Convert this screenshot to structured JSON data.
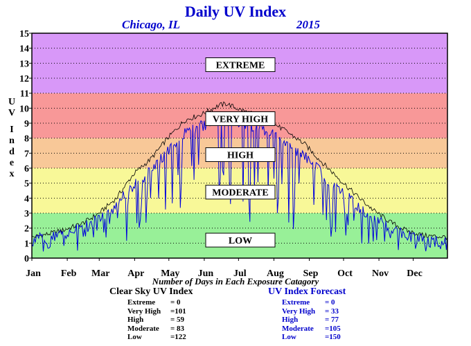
{
  "title": "Daily UV Index",
  "location": "Chicago, IL",
  "year": "2015",
  "ylabel": "UV Index",
  "footer_caption": "Number of Days in Each Exposure Catagory",
  "clear_sky": {
    "heading": "Clear Sky UV Index",
    "rows": [
      {
        "label": "Extreme",
        "value": "= 0"
      },
      {
        "label": "Very High",
        "value": "=101"
      },
      {
        "label": "High",
        "value": "= 59"
      },
      {
        "label": "Moderate",
        "value": "= 83"
      },
      {
        "label": "Low",
        "value": "=122"
      }
    ]
  },
  "forecast": {
    "heading": "UV Index Forecast",
    "rows": [
      {
        "label": "Extreme",
        "value": "= 0"
      },
      {
        "label": "Very High",
        "value": "= 33"
      },
      {
        "label": "High",
        "value": "= 77"
      },
      {
        "label": "Moderate",
        "value": "=105"
      },
      {
        "label": "Low",
        "value": "=150"
      }
    ]
  },
  "colors": {
    "title": "#0000cc",
    "forecast_line": "#0000dd",
    "clear_sky_line": "#000000",
    "band_low": "#98f098",
    "band_moderate": "#f8f898",
    "band_high": "#f8c898",
    "band_very_high": "#f89898",
    "band_extreme": "#d898f8"
  },
  "chart_data": {
    "type": "line",
    "x_tick_labels": [
      "Jan",
      "Feb",
      "Mar",
      "Apr",
      "May",
      "Jun",
      "Jul",
      "Aug",
      "Sep",
      "Oct",
      "Nov",
      "Dec"
    ],
    "y_ticks": [
      0,
      1,
      2,
      3,
      4,
      5,
      6,
      7,
      8,
      9,
      10,
      11,
      12,
      13,
      14,
      15
    ],
    "ylim": [
      0,
      15
    ],
    "xlim": [
      1,
      365
    ],
    "grid": true,
    "bands": [
      {
        "label": "LOW",
        "from": 0,
        "to": 3,
        "label_y": 1.2
      },
      {
        "label": "MODERATE",
        "from": 3,
        "to": 6,
        "label_y": 4.4
      },
      {
        "label": "HIGH",
        "from": 6,
        "to": 8,
        "label_y": 6.9
      },
      {
        "label": "VERY HIGH",
        "from": 8,
        "to": 11,
        "label_y": 9.3
      },
      {
        "label": "EXTREME",
        "from": 11,
        "to": 15,
        "label_y": 12.9
      }
    ],
    "series": [
      {
        "name": "Clear Sky UV Index",
        "x": [
          1,
          15,
          30,
          45,
          60,
          75,
          90,
          105,
          120,
          135,
          150,
          165,
          172,
          180,
          195,
          210,
          225,
          240,
          255,
          270,
          285,
          300,
          315,
          330,
          345,
          365
        ],
        "values": [
          1.4,
          1.6,
          1.9,
          2.3,
          3.0,
          4.0,
          5.6,
          6.6,
          8.0,
          9.2,
          9.6,
          10.2,
          10.3,
          10.0,
          9.6,
          9.1,
          8.4,
          7.6,
          6.4,
          5.3,
          4.2,
          3.2,
          2.4,
          1.8,
          1.5,
          1.4
        ]
      },
      {
        "name": "UV Index Forecast",
        "x": [
          1,
          15,
          30,
          45,
          60,
          75,
          90,
          105,
          120,
          135,
          150,
          165,
          172,
          180,
          195,
          210,
          225,
          240,
          255,
          270,
          285,
          300,
          315,
          330,
          345,
          365
        ],
        "values": [
          1.2,
          1.4,
          1.6,
          2.0,
          2.6,
          3.5,
          4.9,
          5.8,
          7.1,
          8.3,
          8.8,
          9.4,
          9.5,
          9.2,
          8.8,
          8.4,
          7.7,
          6.8,
          5.6,
          4.6,
          3.6,
          2.6,
          2.0,
          1.5,
          1.2,
          1.1
        ]
      }
    ]
  }
}
